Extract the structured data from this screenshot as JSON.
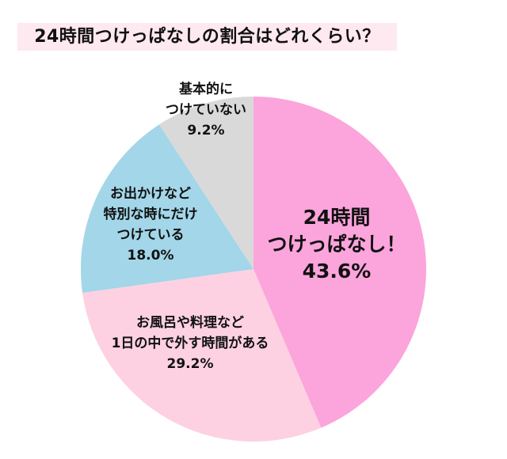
{
  "title": "24時間つけっぱなしの割合はどれくらい？",
  "chart_data": {
    "type": "pie",
    "title": "24時間つけっぱなしの割合はどれくらい？",
    "start_angle_deg": 0,
    "direction": "clockwise",
    "slices": [
      {
        "label": "24時間つけっぱなし！",
        "value": 43.6,
        "value_label": "43.6%",
        "color": "#fca4dc"
      },
      {
        "label": "お風呂や料理など1日の中で外す時間がある",
        "value": 29.2,
        "value_label": "29.2%",
        "color": "#fdd1e2"
      },
      {
        "label": "お出かけなど特別な時にだけつけている",
        "value": 18.0,
        "value_label": "18.0%",
        "color": "#a2d6e8"
      },
      {
        "label": "基本的につけていない",
        "value": 9.2,
        "value_label": "9.2%",
        "color": "#d9d9d9"
      }
    ],
    "legend": "none",
    "labels_position": "inside"
  },
  "labels": {
    "always_on": {
      "lines": [
        "24時間",
        "つけっぱなし！",
        "43.6%"
      ]
    },
    "remove_sometimes": {
      "lines": [
        "お風呂や料理など",
        "1日の中で外す時間がある",
        "29.2%"
      ]
    },
    "special_occasions": {
      "lines": [
        "お出かけなど",
        "特別な時にだけ",
        "つけている",
        "18.0%"
      ]
    },
    "not_usually": {
      "lines": [
        "基本的に",
        "つけていない",
        "9.2%"
      ]
    }
  },
  "colors": {
    "title_bg": "#fde9ef",
    "pink": "#fca4dc",
    "light_pink": "#fdd1e2",
    "blue": "#a2d6e8",
    "gray": "#d9d9d9"
  }
}
